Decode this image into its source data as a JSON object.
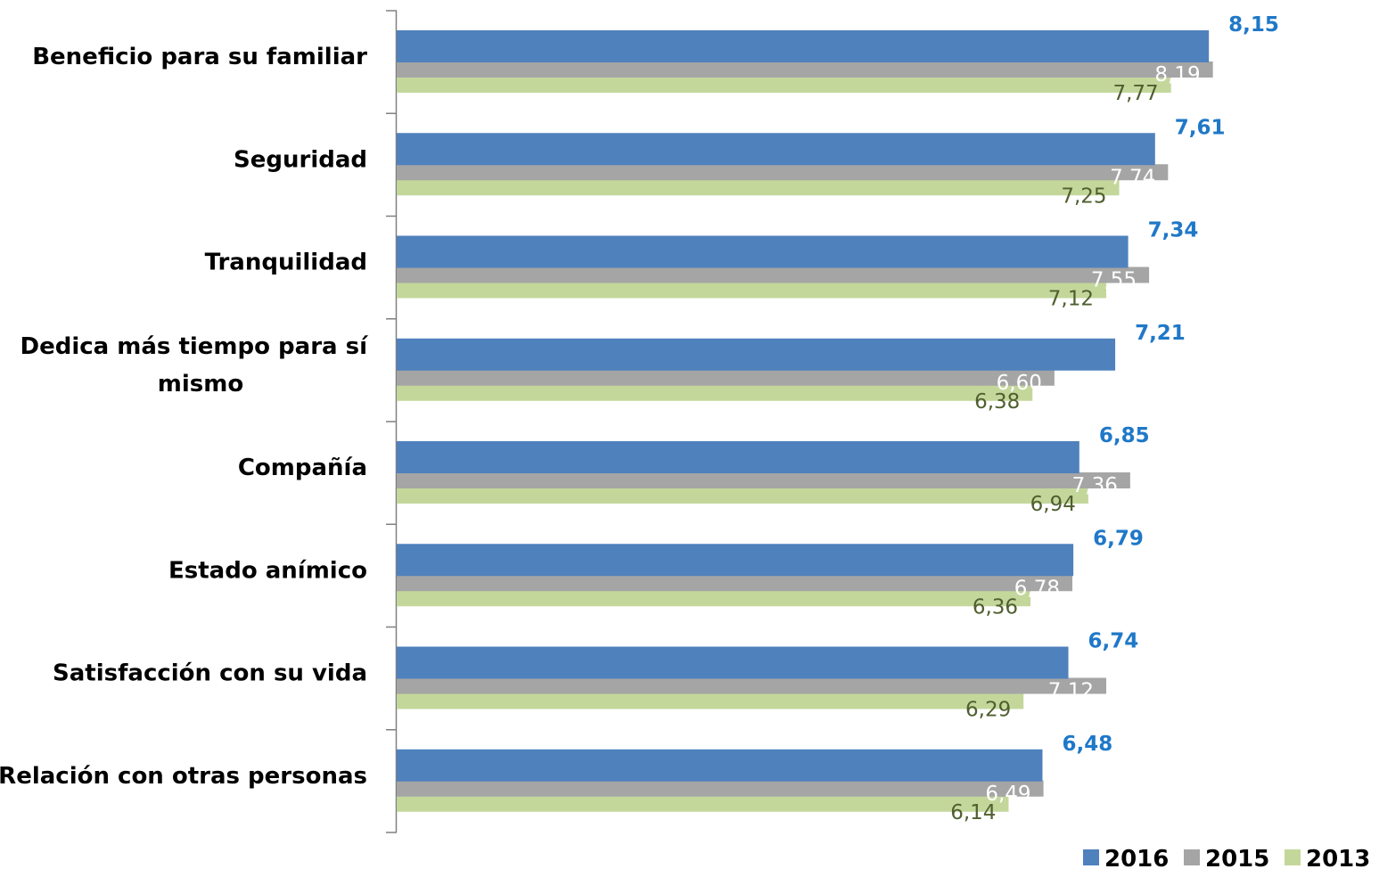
{
  "chart_data": {
    "type": "bar",
    "orientation": "horizontal",
    "title": "",
    "xlabel": "",
    "ylabel": "",
    "xlim": [
      0,
      10
    ],
    "grid": false,
    "legend_position": "bottom-right",
    "categories": [
      "Beneficio para su familiar",
      "Seguridad",
      "Tranquilidad",
      "Dedica más tiempo para sí mismo",
      "Compañía",
      "Estado anímico",
      "Satisfacción con su vida",
      "Relación con otras personas"
    ],
    "series": [
      {
        "name": "2016",
        "color": "#4F81BD",
        "label_color": "#1F78C8",
        "values": [
          8.15,
          7.61,
          7.34,
          7.21,
          6.85,
          6.79,
          6.74,
          6.48
        ],
        "labels": [
          "8,15",
          "7,61",
          "7,34",
          "7,21",
          "6,85",
          "6,79",
          "6,74",
          "6,48"
        ]
      },
      {
        "name": "2015",
        "color": "#A5A5A5",
        "label_color": "#FFFFFF",
        "values": [
          8.19,
          7.74,
          7.55,
          6.6,
          7.36,
          6.78,
          7.12,
          6.49
        ],
        "labels": [
          "8,19",
          "7,74",
          "7,55",
          "6,60",
          "7,36",
          "6,78",
          "7,12",
          "6,49"
        ]
      },
      {
        "name": "2013",
        "color": "#C4D79B",
        "label_color": "#4F5F2F",
        "values": [
          7.77,
          7.25,
          7.12,
          6.38,
          6.94,
          6.36,
          6.29,
          6.14
        ],
        "labels": [
          "7,77",
          "7,25",
          "7,12",
          "6,38",
          "6,94",
          "6,36",
          "6,29",
          "6,14"
        ]
      }
    ]
  }
}
